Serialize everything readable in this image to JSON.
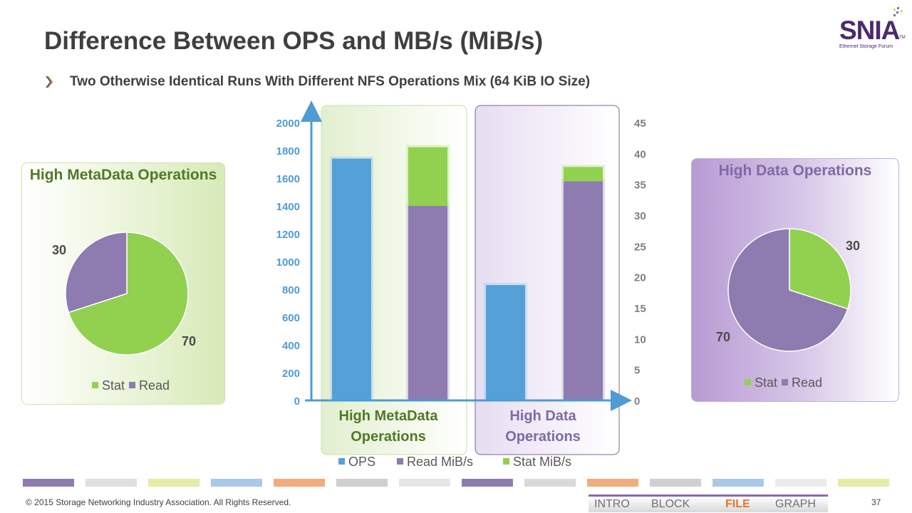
{
  "title": "Difference Between OPS and MB/s (MiB/s)",
  "subtitle": "Two Otherwise Identical Runs With Different NFS Operations Mix (64 KiB IO Size)",
  "logo": {
    "name": "SNIA",
    "tm": "TM",
    "tagline": "Ethernet Storage Forum"
  },
  "colors": {
    "ops": "#56a0d8",
    "read": "#8e7bb0",
    "stat": "#92d050",
    "title": "#3f3f3f",
    "left_axis": "#4f9bd4",
    "right_axis": "#7f7f7f",
    "meta_text": "#4f7a28",
    "data_text": "#7e6aa6"
  },
  "chart_data": [
    {
      "type": "pie",
      "title": "High MetaData Operations",
      "labels": [
        "Stat",
        "Read"
      ],
      "values": [
        70,
        30
      ],
      "colors": [
        "#92d050",
        "#8e7bb0"
      ],
      "legend": "bottom"
    },
    {
      "type": "bar",
      "stacked": true,
      "categories": [
        "High MetaData Operations",
        "High Data Operations"
      ],
      "series": [
        {
          "name": "OPS",
          "axis": "left",
          "values": [
            1740,
            830
          ]
        },
        {
          "name": "Read MiB/s",
          "axis": "right",
          "values": [
            31.5,
            35.5
          ]
        },
        {
          "name": "Stat MiB/s",
          "axis": "right",
          "values": [
            9.5,
            2.3
          ]
        }
      ],
      "left_axis": {
        "ylim": [
          0,
          2000
        ],
        "ticks": [
          "0",
          "200",
          "400",
          "600",
          "800",
          "1000",
          "1200",
          "1400",
          "1600",
          "1800",
          "2000"
        ]
      },
      "right_axis": {
        "ylim": [
          0,
          45
        ],
        "ticks": [
          "0",
          "5",
          "10",
          "15",
          "20",
          "25",
          "30",
          "35",
          "40",
          "45"
        ]
      },
      "legend": "bottom"
    },
    {
      "type": "pie",
      "title": "High Data Operations",
      "labels": [
        "Stat",
        "Read"
      ],
      "values": [
        30,
        70
      ],
      "colors": [
        "#92d050",
        "#8e7bb0"
      ],
      "legend": "bottom"
    }
  ],
  "legend": {
    "stat": "Stat",
    "read": "Read",
    "ops": "OPS",
    "read_mibs": "Read MiB/s",
    "stat_mibs": "Stat MiB/s"
  },
  "footer": {
    "copyright": "© 2015 Storage Networking Industry Association. All Rights Reserved.",
    "page": "37",
    "nav": [
      "INTRO",
      "BLOCK",
      "FILE",
      "GRAPH"
    ],
    "nav_active": "FILE",
    "bar_colors": [
      "#8e7bb0",
      "#e0e0e0",
      "#e6eba6",
      "#a9c9e8",
      "#f1ac7e",
      "#cfcfcf",
      "#e6e6e6",
      "#8e7bb0",
      "#d9d9d9",
      "#f1ac7e",
      "#cfcfcf",
      "#a9c9e8",
      "#ebebeb",
      "#e6eba6"
    ]
  }
}
